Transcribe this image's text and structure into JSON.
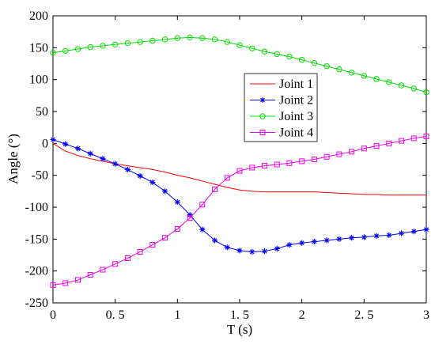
{
  "chart_data": {
    "type": "line",
    "xlabel": "T (s)",
    "ylabel": "Angle (°)",
    "xlim": [
      0,
      3
    ],
    "ylim": [
      -250,
      200
    ],
    "x_ticks": [
      0,
      0.5,
      1,
      1.5,
      2,
      2.5,
      3
    ],
    "x_tick_labels": [
      "0",
      "0. 5",
      "1",
      "1. 5",
      "2",
      "2. 5",
      "3"
    ],
    "y_ticks": [
      -250,
      -200,
      -150,
      -100,
      -50,
      0,
      50,
      100,
      150,
      200
    ],
    "y_tick_labels": [
      "-250",
      "-200",
      "-150",
      "-100",
      "-50",
      "0",
      "50",
      "100",
      "150",
      "200"
    ],
    "grid": false,
    "legend_position": "center",
    "x": [
      0,
      0.1,
      0.2,
      0.3,
      0.4,
      0.5,
      0.6,
      0.7,
      0.8,
      0.9,
      1.0,
      1.1,
      1.2,
      1.3,
      1.4,
      1.5,
      1.6,
      1.7,
      1.8,
      1.9,
      2.0,
      2.1,
      2.2,
      2.3,
      2.4,
      2.5,
      2.6,
      2.7,
      2.8,
      2.9,
      3.0
    ],
    "series": [
      {
        "name": "Joint 1",
        "color": "#ff0000",
        "marker": "none",
        "values": [
          0,
          -12,
          -19,
          -24,
          -28,
          -32,
          -35,
          -38,
          -41,
          -45,
          -50,
          -54,
          -59,
          -64,
          -69,
          -73,
          -75,
          -76,
          -76,
          -76,
          -76,
          -76,
          -77,
          -78,
          -79,
          -80,
          -80,
          -81,
          -81,
          -81,
          -81
        ]
      },
      {
        "name": "Joint 2",
        "color": "#0000ff",
        "marker": "star",
        "values": [
          6,
          -1,
          -8,
          -16,
          -24,
          -32,
          -41,
          -51,
          -61,
          -75,
          -92,
          -112,
          -135,
          -152,
          -163,
          -168,
          -170,
          -169,
          -165,
          -159,
          -156,
          -154,
          -152,
          -150,
          -148,
          -147,
          -145,
          -144,
          -141,
          -138,
          -135
        ]
      },
      {
        "name": "Joint 3",
        "color": "#00dd00",
        "marker": "circle",
        "values": [
          142,
          145,
          148,
          151,
          153,
          155,
          157,
          159,
          161,
          163,
          165,
          166,
          165,
          163,
          159,
          154,
          149,
          144,
          140,
          136,
          131,
          126,
          121,
          116,
          111,
          106,
          101,
          96,
          91,
          86,
          80
        ]
      },
      {
        "name": "Joint 4",
        "color": "#ee00ee",
        "marker": "square",
        "values": [
          -222,
          -219,
          -214,
          -206,
          -198,
          -189,
          -180,
          -170,
          -159,
          -148,
          -134,
          -117,
          -96,
          -72,
          -54,
          -43,
          -38,
          -35,
          -33,
          -31,
          -28,
          -25,
          -21,
          -17,
          -13,
          -8,
          -4,
          0,
          4,
          8,
          11
        ]
      }
    ]
  }
}
